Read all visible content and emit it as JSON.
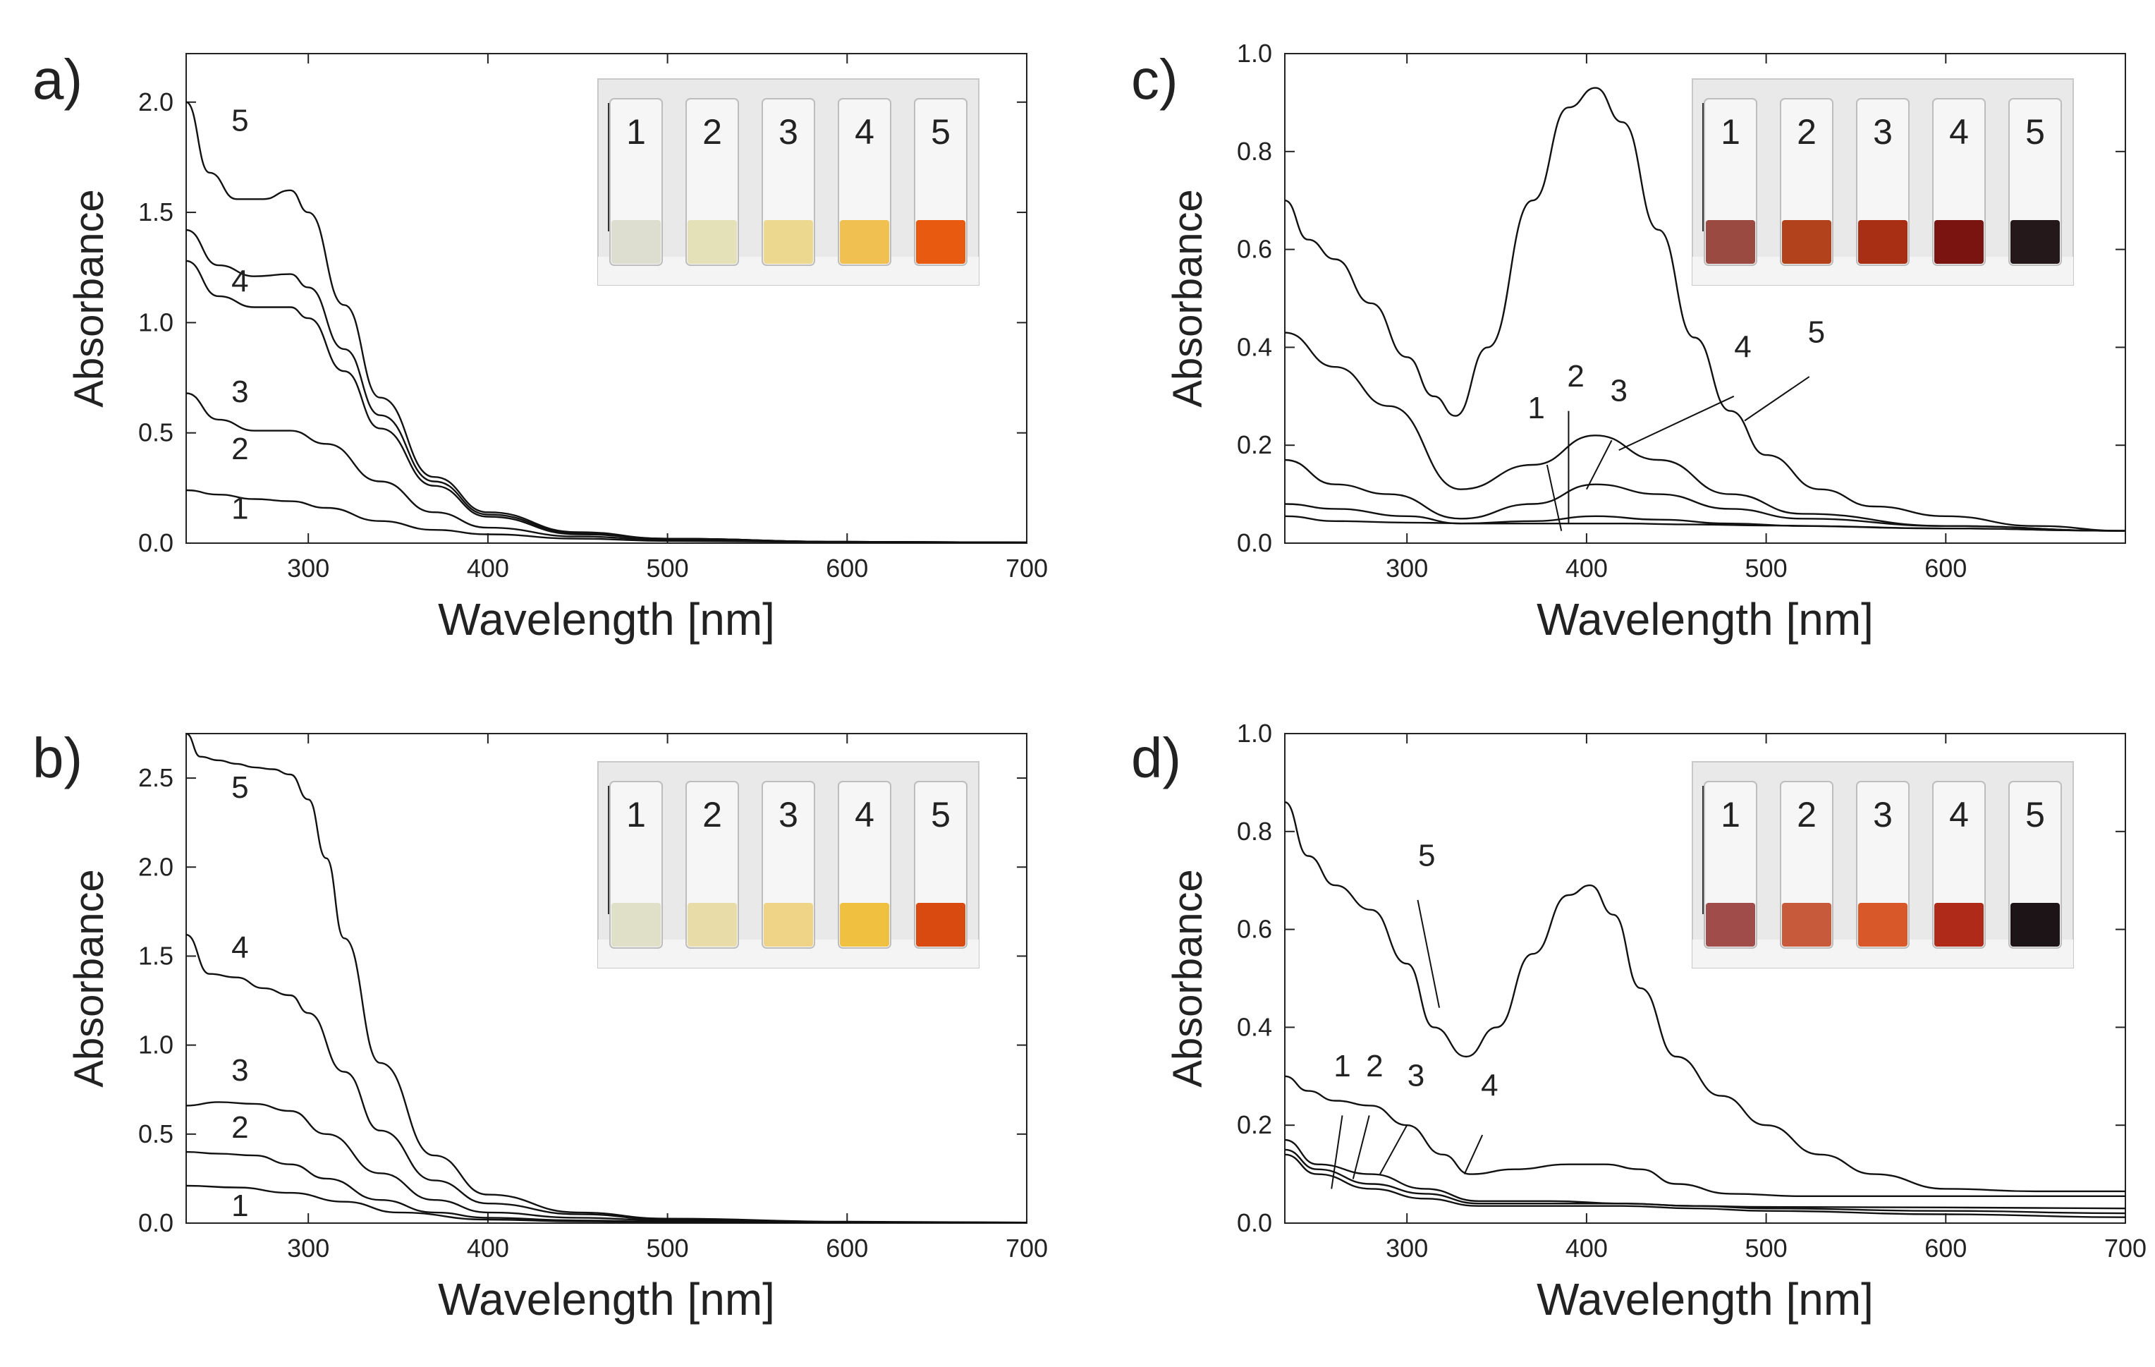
{
  "chart_data": [
    {
      "type": "line",
      "panel_label": "a)",
      "xlabel": "Wavelength [nm]",
      "ylabel": "Absorbance",
      "xlim": [
        232,
        700
      ],
      "ylim": [
        0,
        2.22
      ],
      "xticks": [
        "300",
        "400",
        "500",
        "600",
        "700"
      ],
      "yticks": [
        "0.0",
        "0.5",
        "1.0",
        "1.5",
        "2.0"
      ],
      "xtick_values": [
        300,
        400,
        500,
        600,
        700
      ],
      "ytick_values": [
        0,
        0.5,
        1.0,
        1.5,
        2.0
      ],
      "inset_labels": [
        "1",
        "2",
        "3",
        "4",
        "5"
      ],
      "inset_colors": [
        "#ddddd0",
        "#e4e0b8",
        "#edd890",
        "#f0c050",
        "#e85a10"
      ],
      "series": [
        {
          "name": "1",
          "x": [
            232,
            250,
            270,
            290,
            310,
            340,
            370,
            400,
            450,
            500,
            600,
            700
          ],
          "y": [
            0.24,
            0.22,
            0.2,
            0.19,
            0.16,
            0.1,
            0.06,
            0.04,
            0.02,
            0.01,
            0.005,
            0.003
          ]
        },
        {
          "name": "2",
          "x": [
            232,
            250,
            270,
            290,
            310,
            340,
            370,
            400,
            450,
            500,
            600,
            700
          ],
          "y": [
            0.68,
            0.56,
            0.51,
            0.51,
            0.45,
            0.28,
            0.14,
            0.07,
            0.03,
            0.015,
            0.006,
            0.003
          ]
        },
        {
          "name": "3",
          "x": [
            232,
            250,
            270,
            290,
            300,
            320,
            340,
            370,
            400,
            450,
            500,
            600,
            700
          ],
          "y": [
            1.28,
            1.12,
            1.07,
            1.07,
            1.02,
            0.78,
            0.52,
            0.26,
            0.12,
            0.04,
            0.02,
            0.006,
            0.003
          ]
        },
        {
          "name": "4",
          "x": [
            232,
            250,
            270,
            290,
            300,
            320,
            340,
            370,
            400,
            450,
            500,
            600,
            700
          ],
          "y": [
            1.42,
            1.26,
            1.21,
            1.22,
            1.16,
            0.88,
            0.58,
            0.28,
            0.13,
            0.045,
            0.02,
            0.006,
            0.003
          ]
        },
        {
          "name": "5",
          "x": [
            232,
            245,
            260,
            275,
            290,
            300,
            320,
            340,
            370,
            400,
            450,
            500,
            600,
            700
          ],
          "y": [
            2.0,
            1.68,
            1.56,
            1.56,
            1.6,
            1.5,
            1.08,
            0.66,
            0.3,
            0.14,
            0.05,
            0.02,
            0.006,
            0.003
          ]
        }
      ],
      "curve_labels": [
        {
          "text": "1",
          "x": 262,
          "y": 0.11
        },
        {
          "text": "2",
          "x": 262,
          "y": 0.38
        },
        {
          "text": "3",
          "x": 262,
          "y": 0.64
        },
        {
          "text": "4",
          "x": 262,
          "y": 1.14
        },
        {
          "text": "5",
          "x": 262,
          "y": 1.87
        }
      ],
      "leaders": []
    },
    {
      "type": "line",
      "panel_label": "b)",
      "xlabel": "Wavelength [nm]",
      "ylabel": "Absorbance",
      "xlim": [
        232,
        700
      ],
      "ylim": [
        0,
        2.75
      ],
      "xticks": [
        "300",
        "400",
        "500",
        "600",
        "700"
      ],
      "yticks": [
        "0.0",
        "0.5",
        "1.0",
        "1.5",
        "2.0",
        "2.5"
      ],
      "xtick_values": [
        300,
        400,
        500,
        600,
        700
      ],
      "ytick_values": [
        0,
        0.5,
        1.0,
        1.5,
        2.0,
        2.5
      ],
      "inset_labels": [
        "1",
        "2",
        "3",
        "4",
        "5"
      ],
      "inset_colors": [
        "#e0e0c8",
        "#e8dca8",
        "#efd488",
        "#f0c040",
        "#d84a10"
      ],
      "series": [
        {
          "name": "1",
          "x": [
            232,
            260,
            290,
            320,
            350,
            400,
            450,
            500,
            600,
            700
          ],
          "y": [
            0.21,
            0.2,
            0.17,
            0.12,
            0.06,
            0.02,
            0.01,
            0.006,
            0.003,
            0.002
          ]
        },
        {
          "name": "2",
          "x": [
            232,
            250,
            270,
            290,
            310,
            340,
            370,
            400,
            450,
            500,
            600,
            700
          ],
          "y": [
            0.4,
            0.39,
            0.38,
            0.33,
            0.25,
            0.13,
            0.06,
            0.03,
            0.015,
            0.008,
            0.004,
            0.002
          ]
        },
        {
          "name": "3",
          "x": [
            232,
            250,
            270,
            290,
            310,
            340,
            370,
            400,
            450,
            500,
            600,
            700
          ],
          "y": [
            0.66,
            0.68,
            0.67,
            0.63,
            0.5,
            0.28,
            0.13,
            0.06,
            0.03,
            0.015,
            0.005,
            0.003
          ]
        },
        {
          "name": "4",
          "x": [
            232,
            245,
            260,
            275,
            290,
            300,
            320,
            340,
            370,
            400,
            450,
            500,
            600,
            700
          ],
          "y": [
            1.62,
            1.4,
            1.38,
            1.32,
            1.28,
            1.18,
            0.85,
            0.52,
            0.24,
            0.11,
            0.05,
            0.02,
            0.006,
            0.003
          ]
        },
        {
          "name": "5",
          "x": [
            232,
            240,
            250,
            260,
            270,
            280,
            290,
            300,
            310,
            320,
            340,
            370,
            400,
            450,
            500,
            600,
            700
          ],
          "y": [
            2.75,
            2.62,
            2.6,
            2.58,
            2.56,
            2.55,
            2.52,
            2.38,
            2.05,
            1.6,
            0.9,
            0.38,
            0.16,
            0.06,
            0.025,
            0.008,
            0.003
          ]
        }
      ],
      "curve_labels": [
        {
          "text": "1",
          "x": 262,
          "y": 0.04
        },
        {
          "text": "2",
          "x": 262,
          "y": 0.48
        },
        {
          "text": "3",
          "x": 262,
          "y": 0.8
        },
        {
          "text": "4",
          "x": 262,
          "y": 1.49
        },
        {
          "text": "5",
          "x": 262,
          "y": 2.39
        }
      ],
      "leaders": []
    },
    {
      "type": "line",
      "panel_label": "c)",
      "xlabel": "Wavelength [nm]",
      "ylabel": "Absorbance",
      "xlim": [
        232,
        700
      ],
      "ylim": [
        0,
        1.0
      ],
      "xticks": [
        "300",
        "400",
        "500",
        "600"
      ],
      "yticks": [
        "0.0",
        "0.2",
        "0.4",
        "0.6",
        "0.8",
        "1.0"
      ],
      "xtick_values": [
        300,
        400,
        500,
        600
      ],
      "ytick_values": [
        0,
        0.2,
        0.4,
        0.6,
        0.8,
        1.0
      ],
      "inset_labels": [
        "1",
        "2",
        "3",
        "4",
        "5"
      ],
      "inset_colors": [
        "#9a4a40",
        "#b2421c",
        "#a82e14",
        "#7a1410",
        "#24181a"
      ],
      "series": [
        {
          "name": "1",
          "x": [
            232,
            260,
            300,
            340,
            380,
            420,
            460,
            500,
            600,
            700
          ],
          "y": [
            0.055,
            0.045,
            0.042,
            0.04,
            0.04,
            0.04,
            0.038,
            0.036,
            0.03,
            0.025
          ]
        },
        {
          "name": "2",
          "x": [
            232,
            260,
            300,
            330,
            370,
            405,
            440,
            480,
            520,
            600,
            700
          ],
          "y": [
            0.08,
            0.07,
            0.055,
            0.04,
            0.045,
            0.055,
            0.048,
            0.04,
            0.035,
            0.03,
            0.025
          ]
        },
        {
          "name": "3",
          "x": [
            232,
            260,
            290,
            330,
            370,
            405,
            440,
            480,
            520,
            600,
            700
          ],
          "y": [
            0.17,
            0.12,
            0.1,
            0.05,
            0.08,
            0.12,
            0.1,
            0.07,
            0.05,
            0.035,
            0.025
          ]
        },
        {
          "name": "4",
          "x": [
            232,
            260,
            290,
            330,
            370,
            405,
            440,
            480,
            520,
            600,
            700
          ],
          "y": [
            0.43,
            0.36,
            0.28,
            0.11,
            0.16,
            0.22,
            0.17,
            0.1,
            0.06,
            0.035,
            0.025
          ]
        },
        {
          "name": "5",
          "x": [
            232,
            245,
            260,
            280,
            300,
            315,
            327,
            345,
            370,
            390,
            405,
            420,
            440,
            460,
            480,
            500,
            530,
            560,
            600,
            650,
            700
          ],
          "y": [
            0.7,
            0.62,
            0.58,
            0.49,
            0.38,
            0.3,
            0.26,
            0.4,
            0.7,
            0.89,
            0.93,
            0.86,
            0.64,
            0.42,
            0.27,
            0.18,
            0.11,
            0.075,
            0.055,
            0.035,
            0.025
          ]
        }
      ],
      "curve_labels": [
        {
          "text": "1",
          "x": 372,
          "y": 0.255
        },
        {
          "text": "2",
          "x": 394,
          "y": 0.32
        },
        {
          "text": "3",
          "x": 418,
          "y": 0.29
        },
        {
          "text": "4",
          "x": 487,
          "y": 0.38
        },
        {
          "text": "5",
          "x": 528,
          "y": 0.41
        }
      ],
      "leaders": [
        {
          "x1": 378,
          "y1": 0.16,
          "x2": 386,
          "y2": 0.025
        },
        {
          "x1": 390,
          "y1": 0.27,
          "x2": 390,
          "y2": 0.04
        },
        {
          "x1": 414,
          "y1": 0.21,
          "x2": 400,
          "y2": 0.11
        },
        {
          "x1": 482,
          "y1": 0.3,
          "x2": 418,
          "y2": 0.19
        },
        {
          "x1": 524,
          "y1": 0.34,
          "x2": 488,
          "y2": 0.25
        }
      ]
    },
    {
      "type": "line",
      "panel_label": "d)",
      "xlabel": "Wavelength [nm]",
      "ylabel": "Absorbance",
      "xlim": [
        232,
        700
      ],
      "ylim": [
        0,
        1.0
      ],
      "xticks": [
        "300",
        "400",
        "500",
        "600",
        "700"
      ],
      "yticks": [
        "0.0",
        "0.2",
        "0.4",
        "0.6",
        "0.8",
        "1.0"
      ],
      "xtick_values": [
        300,
        400,
        500,
        600,
        700
      ],
      "ytick_values": [
        0,
        0.2,
        0.4,
        0.6,
        0.8,
        1.0
      ],
      "inset_labels": [
        "1",
        "2",
        "3",
        "4",
        "5"
      ],
      "inset_colors": [
        "#a04c4a",
        "#c85a3c",
        "#d9582a",
        "#b02a1a",
        "#1c1416"
      ],
      "series": [
        {
          "name": "1",
          "x": [
            232,
            250,
            280,
            310,
            340,
            380,
            420,
            460,
            500,
            600,
            700
          ],
          "y": [
            0.14,
            0.1,
            0.07,
            0.05,
            0.035,
            0.035,
            0.035,
            0.03,
            0.025,
            0.018,
            0.012
          ]
        },
        {
          "name": "2",
          "x": [
            232,
            250,
            280,
            310,
            340,
            380,
            420,
            460,
            500,
            600,
            700
          ],
          "y": [
            0.15,
            0.11,
            0.08,
            0.06,
            0.04,
            0.04,
            0.04,
            0.035,
            0.03,
            0.025,
            0.02
          ]
        },
        {
          "name": "3",
          "x": [
            232,
            250,
            280,
            310,
            340,
            380,
            420,
            460,
            500,
            600,
            700
          ],
          "y": [
            0.17,
            0.12,
            0.1,
            0.07,
            0.045,
            0.045,
            0.04,
            0.035,
            0.033,
            0.032,
            0.03
          ]
        },
        {
          "name": "4",
          "x": [
            232,
            245,
            260,
            280,
            300,
            320,
            335,
            360,
            390,
            410,
            430,
            450,
            480,
            520,
            600,
            700
          ],
          "y": [
            0.3,
            0.27,
            0.25,
            0.24,
            0.2,
            0.14,
            0.1,
            0.11,
            0.12,
            0.12,
            0.11,
            0.08,
            0.06,
            0.055,
            0.055,
            0.055
          ]
        },
        {
          "name": "5",
          "x": [
            232,
            245,
            260,
            280,
            300,
            315,
            333,
            350,
            370,
            390,
            402,
            415,
            430,
            450,
            475,
            500,
            530,
            560,
            600,
            650,
            700
          ],
          "y": [
            0.86,
            0.75,
            0.69,
            0.64,
            0.53,
            0.4,
            0.34,
            0.4,
            0.55,
            0.67,
            0.69,
            0.63,
            0.48,
            0.34,
            0.26,
            0.2,
            0.14,
            0.1,
            0.07,
            0.065,
            0.065
          ]
        }
      ],
      "curve_labels": [
        {
          "text": "1",
          "x": 264,
          "y": 0.3
        },
        {
          "text": "2",
          "x": 282,
          "y": 0.3
        },
        {
          "text": "3",
          "x": 305,
          "y": 0.28
        },
        {
          "text": "4",
          "x": 346,
          "y": 0.26
        },
        {
          "text": "5",
          "x": 311,
          "y": 0.73
        }
      ],
      "leaders": [
        {
          "x1": 264,
          "y1": 0.22,
          "x2": 258,
          "y2": 0.07
        },
        {
          "x1": 279,
          "y1": 0.22,
          "x2": 270,
          "y2": 0.09
        },
        {
          "x1": 300,
          "y1": 0.2,
          "x2": 285,
          "y2": 0.1
        },
        {
          "x1": 342,
          "y1": 0.18,
          "x2": 332,
          "y2": 0.1
        },
        {
          "x1": 306,
          "y1": 0.66,
          "x2": 318,
          "y2": 0.44
        }
      ]
    }
  ]
}
